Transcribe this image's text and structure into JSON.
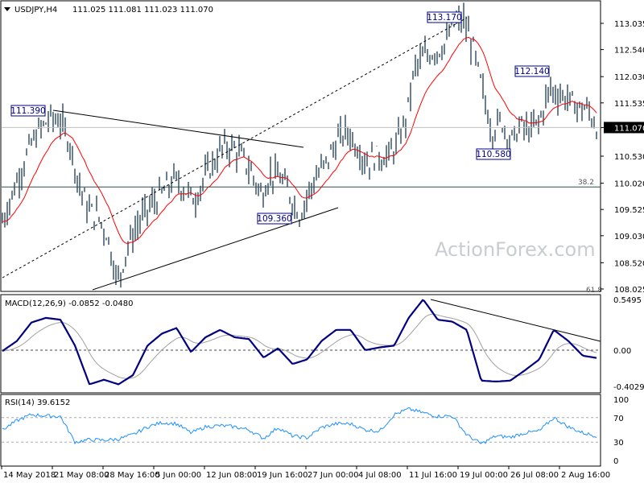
{
  "header": {
    "symbol": "USDJPY,H4",
    "ohlc": "111.025 111.081 111.023 111.070",
    "menu_icon": "triangle-down-icon"
  },
  "watermark": "ActionForex.com",
  "colors": {
    "bars": "#1b3a52",
    "ema": "#ff0000",
    "macd": "#000080",
    "signal": "#a0a0a0",
    "rsi": "#1e90ff",
    "price_tag_bg": "#000000"
  },
  "chart_data": [
    {
      "type": "line",
      "title": "USDJPY,H4",
      "ylim": [
        108.025,
        113.035
      ],
      "y_ticks": [
        "113.035",
        "112.540",
        "112.030",
        "111.535",
        "111.070",
        "110.530",
        "110.020",
        "109.525",
        "109.030",
        "108.520",
        "108.025"
      ],
      "current_price": "111.070",
      "fib_labels": [
        "38.2",
        "61.8"
      ],
      "fib_level_38_2": 109.95,
      "annotations": [
        "111.390",
        "109.360",
        "113.170",
        "110.580",
        "112.140"
      ],
      "series": [
        {
          "values": [
            109.3,
            109.8,
            110.3,
            110.75,
            111.05,
            111.25,
            111.2,
            110.8,
            110.0,
            109.5,
            109.4,
            109.0,
            108.15,
            108.8,
            109.2,
            109.5,
            109.7,
            109.9,
            110.1,
            109.9,
            109.7,
            110.1,
            110.4,
            110.7,
            110.7,
            110.5,
            110.2,
            109.8,
            110.2,
            110.1,
            109.8,
            109.4,
            109.9,
            110.2,
            110.5,
            110.85,
            111.0,
            110.7,
            110.4,
            110.55,
            110.5,
            110.7,
            111.2,
            112.2,
            112.4,
            112.5,
            112.6,
            113.0,
            113.1,
            112.6,
            111.8,
            111.0,
            111.2,
            110.8,
            111.1,
            111.0,
            111.2,
            111.8,
            111.7,
            111.6,
            111.45,
            111.4,
            111.07
          ]
        }
      ]
    },
    {
      "type": "line",
      "title": "MACD(12,26,9) -0.0852 -0.0480",
      "ylim": [
        -0.4029,
        0.5495
      ],
      "y_ticks": [
        "0.5495",
        "0.00",
        "-0.4029"
      ],
      "series": [
        {
          "values": [
            -0.01,
            0.1,
            0.3,
            0.35,
            0.33,
            0.05,
            -0.37,
            -0.32,
            -0.37,
            -0.27,
            0.05,
            0.18,
            0.24,
            -0.02,
            0.14,
            0.22,
            0.14,
            0.12,
            -0.08,
            0.02,
            -0.15,
            -0.1,
            0.1,
            0.22,
            0.22,
            0.0,
            0.03,
            0.05,
            0.35,
            0.55,
            0.33,
            0.31,
            0.22,
            -0.33,
            -0.34,
            -0.33,
            -0.22,
            -0.1,
            0.22,
            0.1,
            -0.06,
            -0.0852
          ]
        }
      ]
    },
    {
      "type": "line",
      "title": "RSI(14) 39.6152",
      "ylim": [
        0,
        100
      ],
      "y_ticks": [
        "100",
        "70",
        "30",
        "0"
      ],
      "series": [
        {
          "values": [
            50,
            65,
            75,
            73,
            72,
            30,
            34,
            33,
            35,
            42,
            55,
            62,
            60,
            45,
            55,
            57,
            55,
            50,
            36,
            54,
            40,
            37,
            54,
            60,
            60,
            50,
            48,
            75,
            84,
            78,
            72,
            73,
            42,
            27,
            40,
            38,
            45,
            48,
            70,
            55,
            45,
            39.6
          ]
        }
      ]
    }
  ],
  "x_ticks": [
    "14 May 2018",
    "21 May 08:00",
    "28 May 16:00",
    "5 Jun 00:00",
    "12 Jun 08:00",
    "19 Jun 16:00",
    "27 Jun 00:00",
    "4 Jul 08:00",
    "11 Jul 16:00",
    "19 Jul 00:00",
    "26 Jul 08:00",
    "2 Aug 16:00"
  ]
}
